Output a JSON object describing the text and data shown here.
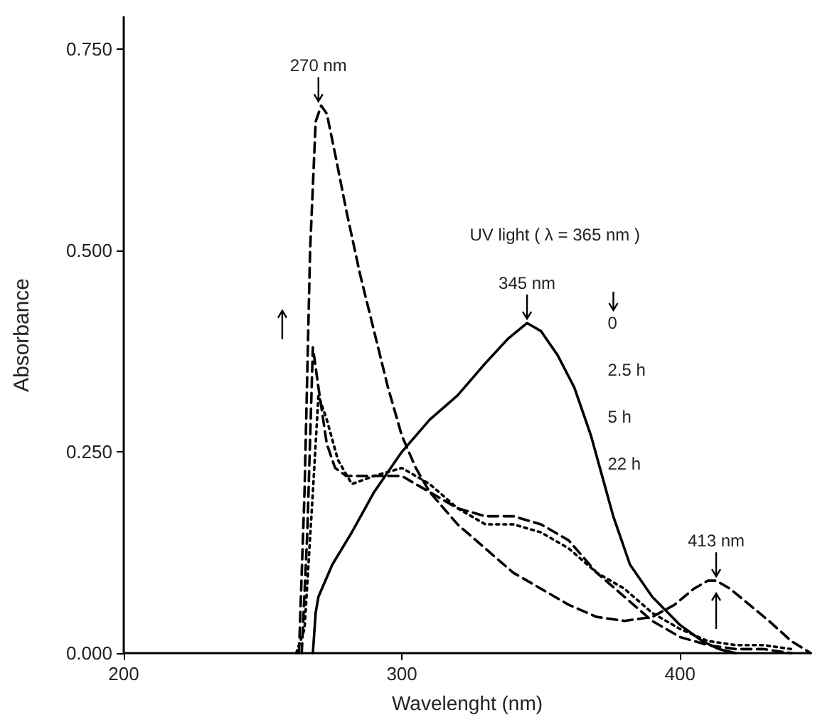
{
  "chart_data": {
    "type": "line",
    "xlabel": "Wavelenght (nm)",
    "ylabel": "Absorbance",
    "xlim": [
      200,
      447
    ],
    "xticks": [
      200,
      300,
      400
    ],
    "ylim": [
      0,
      0.79
    ],
    "yticks": [
      {
        "value": 0,
        "label": "0.000"
      },
      {
        "value": 0.25,
        "label": "0.250"
      },
      {
        "value": 0.5,
        "label": "0.500"
      },
      {
        "value": 0.75,
        "label": "0.750"
      }
    ],
    "grid": false,
    "marker": "none",
    "series": [
      {
        "color": "#000000",
        "line_style": "solid",
        "x": [
          268,
          269,
          270,
          275,
          282,
          290,
          300,
          310,
          320,
          330,
          338,
          345,
          350,
          356,
          362,
          368,
          372,
          376,
          382,
          390,
          400,
          408,
          414,
          420
        ],
        "values": [
          0,
          0.05,
          0.07,
          0.11,
          0.15,
          0.2,
          0.25,
          0.29,
          0.32,
          0.36,
          0.39,
          0.41,
          0.4,
          0.37,
          0.33,
          0.27,
          0.22,
          0.17,
          0.11,
          0.07,
          0.035,
          0.015,
          0.005,
          0
        ]
      },
      {
        "color": "#000000",
        "line_style": "dashed",
        "x": [
          263,
          265,
          267,
          269,
          271,
          273,
          276,
          280,
          285,
          290,
          295,
          300,
          305,
          310,
          320,
          330,
          340,
          350,
          360,
          370,
          380,
          390,
          398,
          405,
          410,
          413,
          418,
          425,
          432,
          440,
          447
        ],
        "values": [
          0,
          0.2,
          0.5,
          0.66,
          0.68,
          0.67,
          0.62,
          0.55,
          0.47,
          0.4,
          0.33,
          0.27,
          0.23,
          0.2,
          0.16,
          0.13,
          0.1,
          0.08,
          0.06,
          0.045,
          0.04,
          0.045,
          0.06,
          0.08,
          0.09,
          0.09,
          0.08,
          0.06,
          0.04,
          0.015,
          0
        ]
      },
      {
        "color": "#000000",
        "line_style": "dashed",
        "x": [
          264,
          266,
          268,
          270,
          273,
          276,
          280,
          290,
          300,
          310,
          320,
          330,
          340,
          350,
          360,
          370,
          380,
          390,
          400,
          410,
          420,
          430,
          440
        ],
        "values": [
          0,
          0.15,
          0.38,
          0.33,
          0.26,
          0.23,
          0.22,
          0.22,
          0.22,
          0.2,
          0.18,
          0.17,
          0.17,
          0.16,
          0.14,
          0.1,
          0.07,
          0.04,
          0.02,
          0.01,
          0.005,
          0.005,
          0
        ]
      },
      {
        "color": "#000000",
        "line_style": "dotted",
        "x": [
          262,
          265,
          268,
          270,
          273,
          277,
          282,
          290,
          300,
          310,
          320,
          330,
          340,
          350,
          360,
          370,
          380,
          390,
          400,
          410,
          420,
          430,
          440
        ],
        "values": [
          0,
          0.03,
          0.2,
          0.32,
          0.29,
          0.24,
          0.21,
          0.22,
          0.23,
          0.21,
          0.18,
          0.16,
          0.16,
          0.15,
          0.13,
          0.1,
          0.08,
          0.05,
          0.03,
          0.015,
          0.01,
          0.01,
          0.005
        ]
      }
    ],
    "annotations": [
      "UV light ( λ = 365 nm )",
      "0",
      "2.5 h",
      "5 h",
      "22 h",
      {
        "text": "270 nm",
        "x": 270,
        "y": 0.68
      },
      {
        "text": "345 nm",
        "x": 345,
        "y": 0.41
      },
      {
        "text": "413 nm",
        "x": 413,
        "y": 0.09
      }
    ]
  }
}
